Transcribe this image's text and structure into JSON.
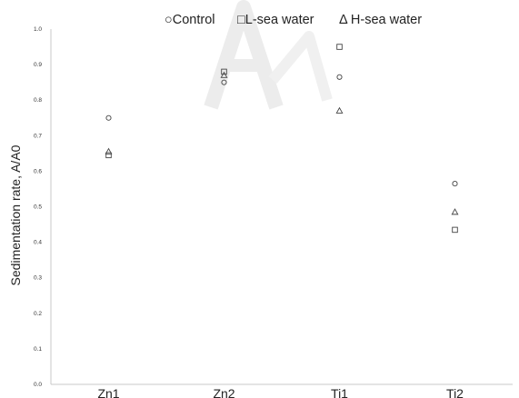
{
  "chart_data": {
    "type": "scatter",
    "categories": [
      "Zn1",
      "Zn2",
      "Ti1",
      "Ti2"
    ],
    "ylabel": "Sedimentation rate, A/A0",
    "xlabel": "",
    "title": "",
    "ylim": [
      0.0,
      1.0
    ],
    "yticks": [
      "0.0",
      "0.1",
      "0.2",
      "0.3",
      "0.4",
      "0.5",
      "0.6",
      "0.7",
      "0.8",
      "0.9",
      "1.0"
    ],
    "legend_position": "top",
    "grid": false,
    "series": [
      {
        "name": "Control",
        "marker": "circle",
        "legend_label": "○Control",
        "values": [
          0.75,
          0.85,
          0.865,
          0.565
        ]
      },
      {
        "name": "L-sea water",
        "marker": "square",
        "legend_label": "□L-sea water",
        "values": [
          0.645,
          0.88,
          0.95,
          0.435
        ]
      },
      {
        "name": "H-sea water",
        "marker": "triangle",
        "legend_label": "Δ H-sea water",
        "values": [
          0.655,
          0.87,
          0.77,
          0.485
        ]
      }
    ],
    "colors": {
      "axis": "#c8c8c8",
      "text": "#222222",
      "marker": "#444444",
      "watermark": "#ececec"
    }
  }
}
